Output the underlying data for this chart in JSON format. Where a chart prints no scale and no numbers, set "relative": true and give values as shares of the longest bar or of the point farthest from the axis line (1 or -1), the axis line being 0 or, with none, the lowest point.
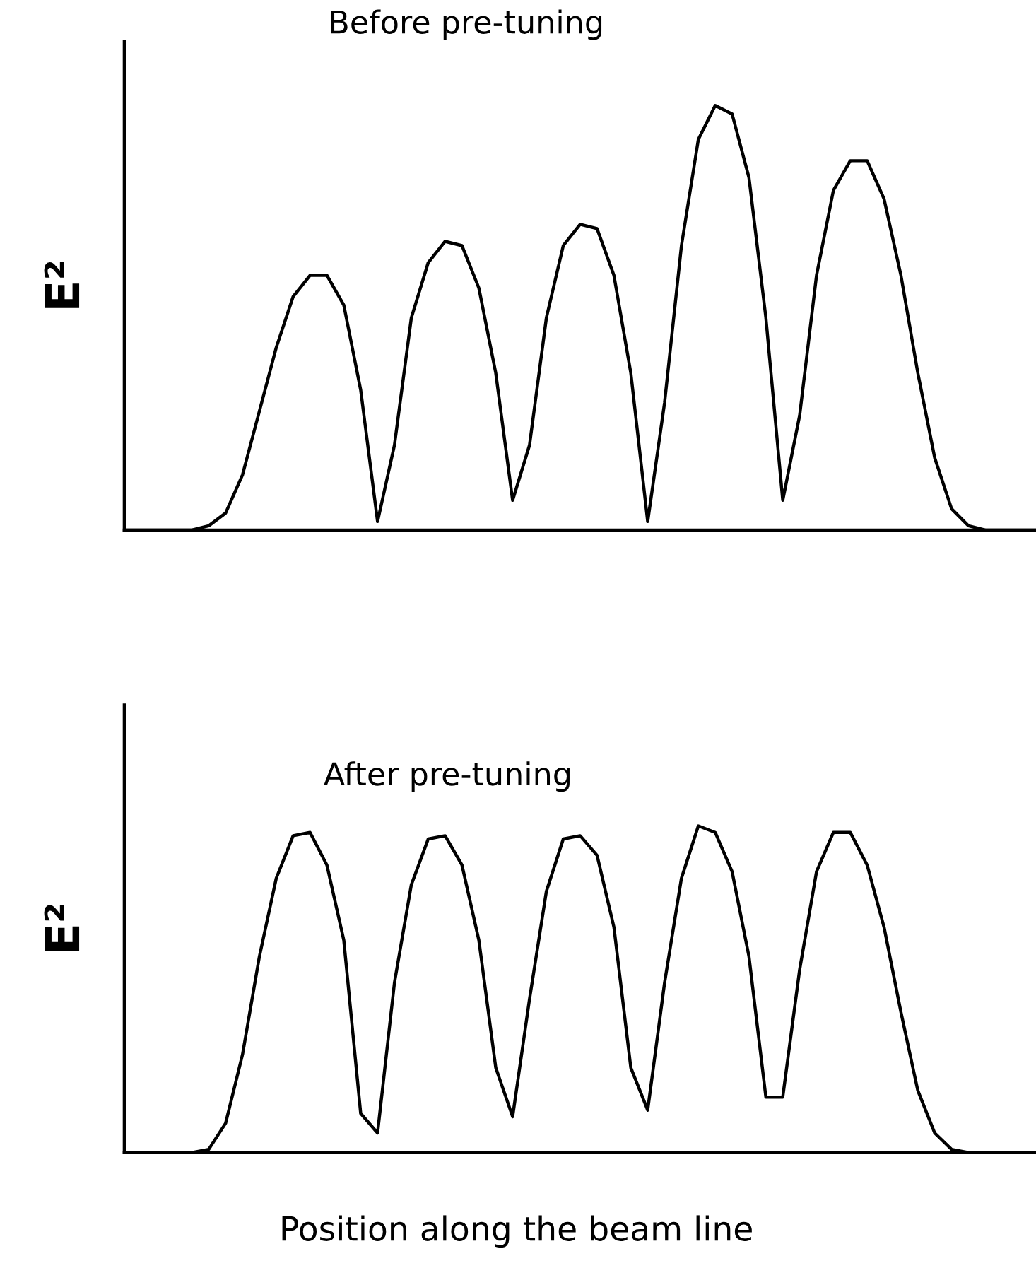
{
  "chart_data": [
    {
      "type": "line",
      "title": "Before pre-tuning",
      "ylabel": "E²",
      "relative": true,
      "color": "#000000",
      "categories": [
        null,
        null,
        null,
        null,
        null,
        null,
        null,
        null,
        null,
        null,
        null,
        null,
        null,
        null,
        null,
        null,
        null,
        null,
        null,
        null,
        null,
        null,
        null,
        null,
        null,
        null,
        null,
        null,
        null,
        null,
        null,
        null,
        null,
        null,
        null,
        null,
        null,
        null,
        null,
        null,
        null,
        null,
        null,
        null,
        null,
        null,
        null,
        null,
        null,
        null,
        null,
        null,
        null,
        null,
        null
      ],
      "values": [
        0,
        0,
        0,
        0,
        0,
        0.01,
        0.04,
        0.13,
        0.28,
        0.43,
        0.55,
        0.6,
        0.6,
        0.53,
        0.33,
        0.02,
        0.2,
        0.5,
        0.63,
        0.68,
        0.67,
        0.57,
        0.37,
        0.07,
        0.2,
        0.5,
        0.67,
        0.72,
        0.71,
        0.6,
        0.37,
        0.02,
        0.3,
        0.67,
        0.92,
        1.0,
        0.98,
        0.83,
        0.5,
        0.07,
        0.27,
        0.6,
        0.8,
        0.87,
        0.87,
        0.78,
        0.6,
        0.37,
        0.17,
        0.05,
        0.01,
        0,
        0,
        0,
        0
      ]
    },
    {
      "type": "line",
      "title": "After pre-tuning",
      "ylabel": "E²",
      "xlabel": "Position along the beam line",
      "relative": true,
      "color": "#000000",
      "categories": [
        null,
        null,
        null,
        null,
        null,
        null,
        null,
        null,
        null,
        null,
        null,
        null,
        null,
        null,
        null,
        null,
        null,
        null,
        null,
        null,
        null,
        null,
        null,
        null,
        null,
        null,
        null,
        null,
        null,
        null,
        null,
        null,
        null,
        null,
        null,
        null,
        null,
        null,
        null,
        null,
        null,
        null,
        null,
        null,
        null,
        null,
        null,
        null,
        null,
        null,
        null,
        null,
        null,
        null,
        null
      ],
      "values": [
        0,
        0,
        0,
        0,
        0,
        0.01,
        0.09,
        0.3,
        0.6,
        0.84,
        0.97,
        0.98,
        0.88,
        0.65,
        0.12,
        0.06,
        0.52,
        0.82,
        0.96,
        0.97,
        0.88,
        0.65,
        0.26,
        0.11,
        0.47,
        0.8,
        0.96,
        0.97,
        0.91,
        0.69,
        0.26,
        0.13,
        0.52,
        0.84,
        1.0,
        0.98,
        0.86,
        0.6,
        0.17,
        0.17,
        0.56,
        0.86,
        0.98,
        0.98,
        0.88,
        0.69,
        0.43,
        0.19,
        0.06,
        0.01,
        0,
        0,
        0,
        0,
        0
      ]
    }
  ]
}
